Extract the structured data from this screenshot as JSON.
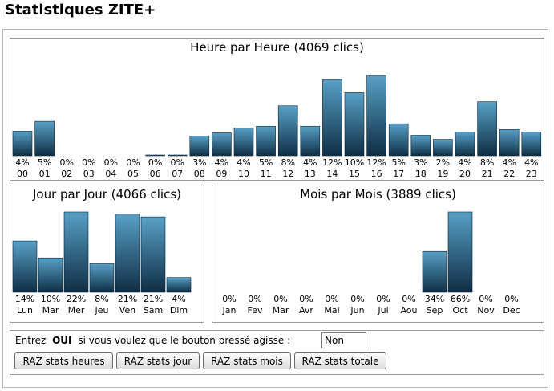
{
  "page": {
    "title": "Statistiques ZITE+"
  },
  "colors": {
    "bar_top": "#58a0c7",
    "bar_bottom": "#0e2e44",
    "bar_edge": "#0b2536"
  },
  "chart_data": [
    {
      "type": "bar",
      "title": "Heure par Heure (4069 clics)",
      "categories": [
        "00",
        "01",
        "02",
        "03",
        "04",
        "05",
        "06",
        "07",
        "08",
        "09",
        "10",
        "11",
        "12",
        "13",
        "14",
        "15",
        "16",
        "17",
        "18",
        "19",
        "20",
        "21",
        "22",
        "23"
      ],
      "values": [
        150,
        210,
        0,
        0,
        0,
        0,
        4,
        4,
        120,
        140,
        170,
        180,
        305,
        180,
        465,
        385,
        490,
        195,
        125,
        100,
        145,
        330,
        160,
        145
      ],
      "labels": [
        "4%",
        "5%",
        "0%",
        "0%",
        "0%",
        "0%",
        "0%",
        "0%",
        "3%",
        "4%",
        "4%",
        "5%",
        "8%",
        "4%",
        "12%",
        "10%",
        "12%",
        "5%",
        "3%",
        "2%",
        "4%",
        "8%",
        "4%",
        "4%"
      ]
    },
    {
      "type": "bar",
      "title": "Jour par Jour (4066 clics)",
      "categories": [
        "Lun",
        "Mar",
        "Mer",
        "Jeu",
        "Ven",
        "Sam",
        "Dim"
      ],
      "values": [
        575,
        385,
        900,
        320,
        875,
        845,
        165
      ],
      "labels": [
        "14%",
        "10%",
        "22%",
        "8%",
        "21%",
        "21%",
        "4%"
      ]
    },
    {
      "type": "bar",
      "title": "Mois par Mois (3889 clics)",
      "categories": [
        "Jan",
        "Fev",
        "Mar",
        "Avr",
        "Mai",
        "Jun",
        "Jul",
        "Aou",
        "Sep",
        "Oct",
        "Nov",
        "Dec"
      ],
      "values": [
        0,
        0,
        0,
        0,
        0,
        0,
        0,
        0,
        1300,
        2560,
        0,
        0
      ],
      "labels": [
        "0%",
        "0%",
        "0%",
        "0%",
        "0%",
        "0%",
        "0%",
        "0%",
        "34%",
        "66%",
        "0%",
        "0%"
      ]
    }
  ],
  "controls": {
    "prompt_before": "Entrez",
    "prompt_keyword": "OUI",
    "prompt_after": "si vous voulez que le bouton pressé agisse :",
    "input_value": "Non",
    "buttons": [
      "RAZ stats heures",
      "RAZ stats jour",
      "RAZ stats mois",
      "RAZ stats totale"
    ]
  }
}
